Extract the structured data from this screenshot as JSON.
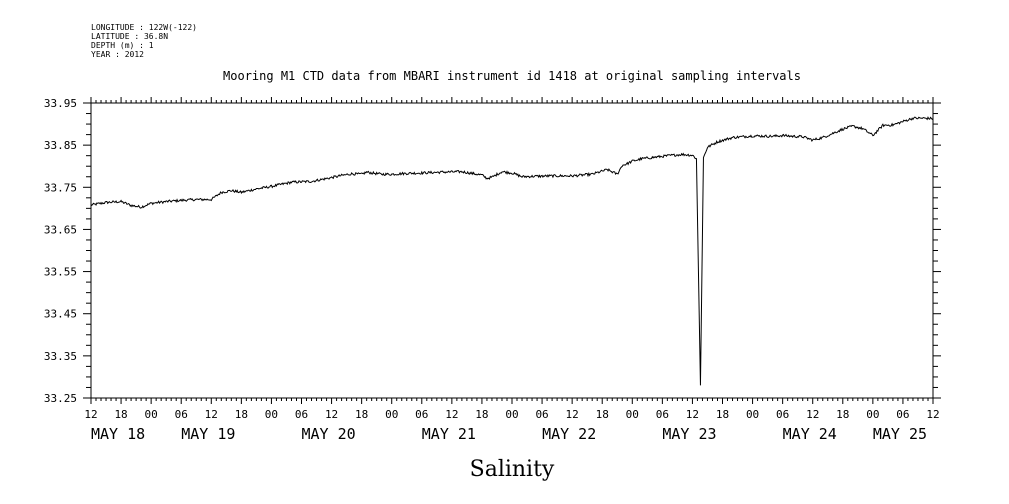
{
  "header": {
    "lines": [
      "LONGITUDE : 122W(-122)",
      "LATITUDE : 36.8N",
      "DEPTH (m) : 1",
      "YEAR : 2012"
    ]
  },
  "chart_data": {
    "type": "line",
    "title": "Mooring M1 CTD data from MBARI instrument id 1418 at original sampling intervals",
    "xlabel": "Salinity",
    "ylabel": "",
    "ylim": [
      33.25,
      33.95
    ],
    "yticks": [
      "33.95",
      "33.85",
      "33.75",
      "33.65",
      "33.55",
      "33.45",
      "33.35",
      "33.25"
    ],
    "xlim_hours": [
      0,
      168
    ],
    "x_hour_labels": [
      "12",
      "18",
      "00",
      "06",
      "12",
      "18",
      "00",
      "06",
      "12",
      "18",
      "00",
      "06",
      "12",
      "18",
      "00",
      "06",
      "12",
      "18",
      "00",
      "06",
      "12",
      "18",
      "00",
      "06",
      "12",
      "18",
      "00",
      "06",
      "12"
    ],
    "day_labels": [
      "MAY 18",
      "MAY 19",
      "MAY 20",
      "MAY 21",
      "MAY 22",
      "MAY 23",
      "MAY 24",
      "MAY 25"
    ],
    "day_label_hours": [
      0,
      18,
      42,
      66,
      90,
      114,
      138,
      156
    ],
    "series": [
      {
        "x": [
          0,
          3,
          6,
          8,
          10,
          12,
          15,
          18,
          21,
          24,
          26,
          28,
          30,
          33,
          36,
          40,
          44,
          48,
          50,
          52,
          54,
          55,
          56,
          58,
          60,
          63,
          66,
          70,
          74,
          78,
          79,
          80,
          82,
          84,
          86,
          88,
          92,
          96,
          100,
          103,
          105,
          106,
          107,
          108,
          110,
          113,
          116,
          118,
          119,
          120,
          120.8,
          121.2,
          121.6,
          122.2,
          123,
          125,
          128,
          132,
          136,
          138,
          140,
          142,
          144,
          146,
          150,
          152,
          154,
          156,
          158,
          160,
          162,
          164,
          166,
          168
        ],
        "y": [
          33.708,
          33.714,
          33.716,
          33.707,
          33.703,
          33.712,
          33.716,
          33.719,
          33.721,
          33.721,
          33.738,
          33.742,
          33.738,
          33.746,
          33.752,
          33.762,
          33.764,
          33.773,
          33.778,
          33.782,
          33.781,
          33.786,
          33.784,
          33.781,
          33.781,
          33.783,
          33.784,
          33.786,
          33.787,
          33.779,
          33.771,
          33.774,
          33.787,
          33.784,
          33.775,
          33.776,
          33.777,
          33.777,
          33.781,
          33.792,
          33.781,
          33.802,
          33.806,
          33.812,
          33.818,
          33.822,
          33.826,
          33.828,
          33.827,
          33.826,
          33.818,
          33.55,
          33.28,
          33.82,
          33.845,
          33.858,
          33.868,
          33.872,
          33.871,
          33.873,
          33.871,
          33.87,
          33.862,
          33.868,
          33.888,
          33.895,
          33.889,
          33.873,
          33.897,
          33.898,
          33.906,
          33.914,
          33.914,
          33.913
        ]
      }
    ],
    "grid": false,
    "line_color": "#000000"
  }
}
